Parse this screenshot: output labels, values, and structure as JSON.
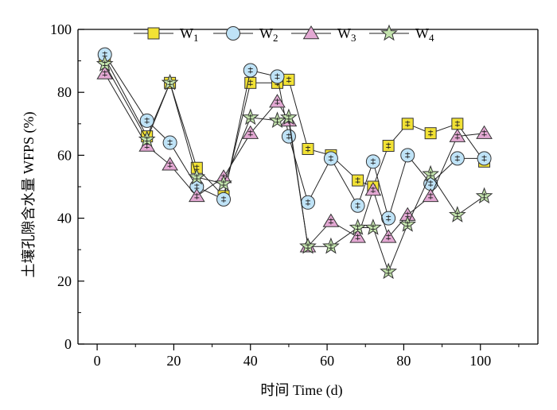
{
  "chart_data": {
    "type": "line",
    "xlabel": "时间 Time (d)",
    "ylabel": "土壤孔隙含水量 WFPS (%)",
    "xlim": [
      -5,
      115
    ],
    "ylim": [
      0,
      100
    ],
    "xticks": [
      0,
      20,
      40,
      60,
      80,
      100
    ],
    "yticks": [
      0,
      20,
      40,
      60,
      80,
      100
    ],
    "legend_position": "top",
    "series": [
      {
        "name": "W1",
        "name_base": "W",
        "name_sub": "1",
        "marker": "square",
        "color": "#f2e234",
        "x": [
          2,
          13,
          19,
          26,
          33,
          40,
          47,
          50,
          55,
          61,
          68,
          72,
          76,
          81,
          87,
          94,
          101
        ],
        "y": [
          91,
          66,
          83,
          56,
          47,
          83,
          83,
          84,
          62,
          60,
          52,
          50,
          63,
          70,
          67,
          70,
          58
        ]
      },
      {
        "name": "W2",
        "name_base": "W",
        "name_sub": "2",
        "marker": "circle",
        "color": "#bfe3f7",
        "x": [
          2,
          13,
          19,
          26,
          33,
          40,
          47,
          50,
          55,
          61,
          68,
          72,
          76,
          81,
          87,
          94,
          101
        ],
        "y": [
          92,
          71,
          64,
          50,
          46,
          87,
          85,
          66,
          45,
          59,
          44,
          58,
          40,
          60,
          51,
          59,
          59
        ]
      },
      {
        "name": "W3",
        "name_base": "W",
        "name_sub": "3",
        "marker": "triangle",
        "color": "#e3a8d3",
        "x": [
          2,
          13,
          19,
          26,
          33,
          40,
          47,
          50,
          55,
          61,
          68,
          72,
          76,
          81,
          87,
          94,
          101
        ],
        "y": [
          86,
          63,
          57,
          47,
          53,
          67,
          77,
          71,
          31,
          39,
          34,
          49,
          34,
          41,
          47,
          66,
          67
        ]
      },
      {
        "name": "W4",
        "name_base": "W",
        "name_sub": "4",
        "marker": "star",
        "color": "#c3e3ad",
        "x": [
          2,
          13,
          19,
          26,
          33,
          40,
          47,
          50,
          55,
          61,
          68,
          72,
          76,
          81,
          87,
          94,
          101
        ],
        "y": [
          89,
          65,
          83,
          53,
          51,
          72,
          71,
          72,
          31,
          31,
          37,
          37,
          23,
          38,
          54,
          41,
          47
        ]
      }
    ]
  }
}
